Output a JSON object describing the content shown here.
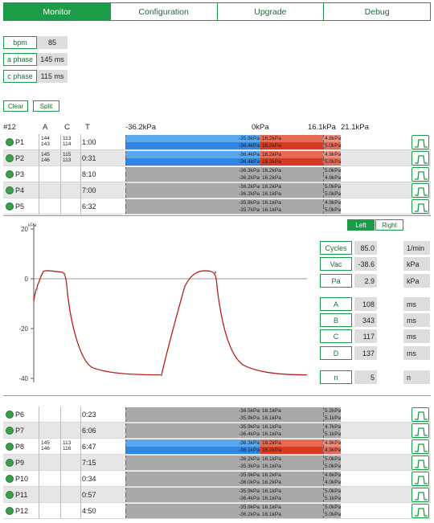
{
  "tabs": [
    "Monitor",
    "Configuration",
    "Upgrade",
    "Debug"
  ],
  "stats": [
    {
      "label": "bpm",
      "value": "85"
    },
    {
      "label": "a phase",
      "value": "145 ms"
    },
    {
      "label": "c phase",
      "value": "115 ms"
    }
  ],
  "buttons": {
    "clear": "Clear",
    "split": "Split"
  },
  "header": {
    "count": "#12",
    "a": "A",
    "c": "C",
    "t": "T",
    "scale": [
      "-36.2kPa",
      "0kPa",
      "16.1kPa",
      "21.1kPa"
    ]
  },
  "colors": {
    "green": "#1c9b48",
    "blue": "#3f95ea",
    "red": "#e2503a",
    "gray": "#a9a9a9"
  },
  "rows_top": [
    {
      "name": "P1",
      "a": [
        "144",
        "143"
      ],
      "c": [
        "113",
        "114"
      ],
      "t": "1:00",
      "active": true,
      "v": [
        [
          "-35.9kPa",
          "16.2kPa",
          "4.8kPa"
        ],
        [
          "-36.4kPa",
          "16.2kPa",
          "5.0kPa"
        ]
      ]
    },
    {
      "name": "P2",
      "a": [
        "145",
        "146"
      ],
      "c": [
        "115",
        "113"
      ],
      "t": "0:31",
      "active": true,
      "v": [
        [
          "-36.4kPa",
          "16.2kPa",
          "4.9kPa"
        ],
        [
          "-36.4kPa",
          "16.2kPa",
          "5.0kPa"
        ]
      ]
    },
    {
      "name": "P3",
      "a": [
        "",
        ""
      ],
      "c": [
        "",
        ""
      ],
      "t": "8:10",
      "active": false,
      "v": [
        [
          "-36.3kPa",
          "16.2kPa",
          "5.0kPa"
        ],
        [
          "-36.2kPa",
          "16.2kPa",
          "4.9kPa"
        ]
      ]
    },
    {
      "name": "P4",
      "a": [
        "",
        ""
      ],
      "c": [
        "",
        ""
      ],
      "t": "7:00",
      "active": false,
      "v": [
        [
          "-36.2kPa",
          "16.2kPa",
          "5.0kPa"
        ],
        [
          "-36.2kPa",
          "16.1kPa",
          "5.0kPa"
        ]
      ]
    },
    {
      "name": "P5",
      "a": [
        "",
        ""
      ],
      "c": [
        "",
        ""
      ],
      "t": "6:32",
      "active": false,
      "v": [
        [
          "-35.8kPa",
          "16.1kPa",
          "4.9kPa"
        ],
        [
          "-35.7kPa",
          "16.1kPa",
          "5.0kPa"
        ]
      ]
    }
  ],
  "rows_bottom": [
    {
      "name": "P6",
      "a": [
        "",
        ""
      ],
      "c": [
        "",
        ""
      ],
      "t": "0:23",
      "active": false,
      "v": [
        [
          "-36.5kPa",
          "16.1kPa",
          "5.2kPa"
        ],
        [
          "-35.9kPa",
          "16.1kPa",
          "5.1kPa"
        ]
      ]
    },
    {
      "name": "P7",
      "a": [
        "",
        ""
      ],
      "c": [
        "",
        ""
      ],
      "t": "6:06",
      "active": false,
      "v": [
        [
          "-35.9kPa",
          "16.1kPa",
          "4.7kPa"
        ],
        [
          "-36.4kPa",
          "16.1kPa",
          "5.1kPa"
        ]
      ]
    },
    {
      "name": "P8",
      "a": [
        "145",
        "146"
      ],
      "c": [
        "113",
        "116"
      ],
      "t": "6:47",
      "active": true,
      "v": [
        [
          "-36.3kPa",
          "16.2kPa",
          "4.9kPa"
        ],
        [
          "-36.1kPa",
          "16.2kPa",
          "4.9kPa"
        ]
      ]
    },
    {
      "name": "P9",
      "a": [
        "",
        ""
      ],
      "c": [
        "",
        ""
      ],
      "t": "7:15",
      "active": false,
      "v": [
        [
          "-36.2kPa",
          "16.1kPa",
          "5.0kPa"
        ],
        [
          "-35.3kPa",
          "16.1kPa",
          "5.0kPa"
        ]
      ]
    },
    {
      "name": "P10",
      "a": [
        "",
        ""
      ],
      "c": [
        "",
        ""
      ],
      "t": "0:34",
      "active": false,
      "v": [
        [
          "-35.9kPa",
          "16.2kPa",
          "4.6kPa"
        ],
        [
          "-36.0kPa",
          "16.2kPa",
          "4.0kPa"
        ]
      ]
    },
    {
      "name": "P11",
      "a": [
        "",
        ""
      ],
      "c": [
        "",
        ""
      ],
      "t": "0:57",
      "active": false,
      "v": [
        [
          "-35.9kPa",
          "16.1kPa",
          "5.0kPa"
        ],
        [
          "-36.4kPa",
          "16.1kPa",
          "5.1kPa"
        ]
      ]
    },
    {
      "name": "P12",
      "a": [
        "",
        ""
      ],
      "c": [
        "",
        ""
      ],
      "t": "4:50",
      "active": false,
      "v": [
        [
          "-35.9kPa",
          "16.1kPa",
          "5.0kPa"
        ],
        [
          "-36.2kPa",
          "16.1kPa",
          "5.0kPa"
        ]
      ]
    }
  ],
  "graph": {
    "unit": "kPa",
    "ticks": [
      "20",
      "0",
      "-20",
      "-40"
    ]
  },
  "side": {
    "left": "Left",
    "right": "Right"
  },
  "params": [
    {
      "label": "Cycles",
      "value": "85.0",
      "unit": "1/min"
    },
    {
      "label": "Vac",
      "value": "-38.6",
      "unit": "kPa"
    },
    {
      "label": "Pa",
      "value": "2.9",
      "unit": "kPa"
    },
    {
      "label": "A",
      "value": "108",
      "unit": "ms"
    },
    {
      "label": "B",
      "value": "343",
      "unit": "ms"
    },
    {
      "label": "C",
      "value": "117",
      "unit": "ms"
    },
    {
      "label": "D",
      "value": "137",
      "unit": "ms"
    },
    {
      "label": "n",
      "value": "5",
      "unit": "n"
    }
  ]
}
